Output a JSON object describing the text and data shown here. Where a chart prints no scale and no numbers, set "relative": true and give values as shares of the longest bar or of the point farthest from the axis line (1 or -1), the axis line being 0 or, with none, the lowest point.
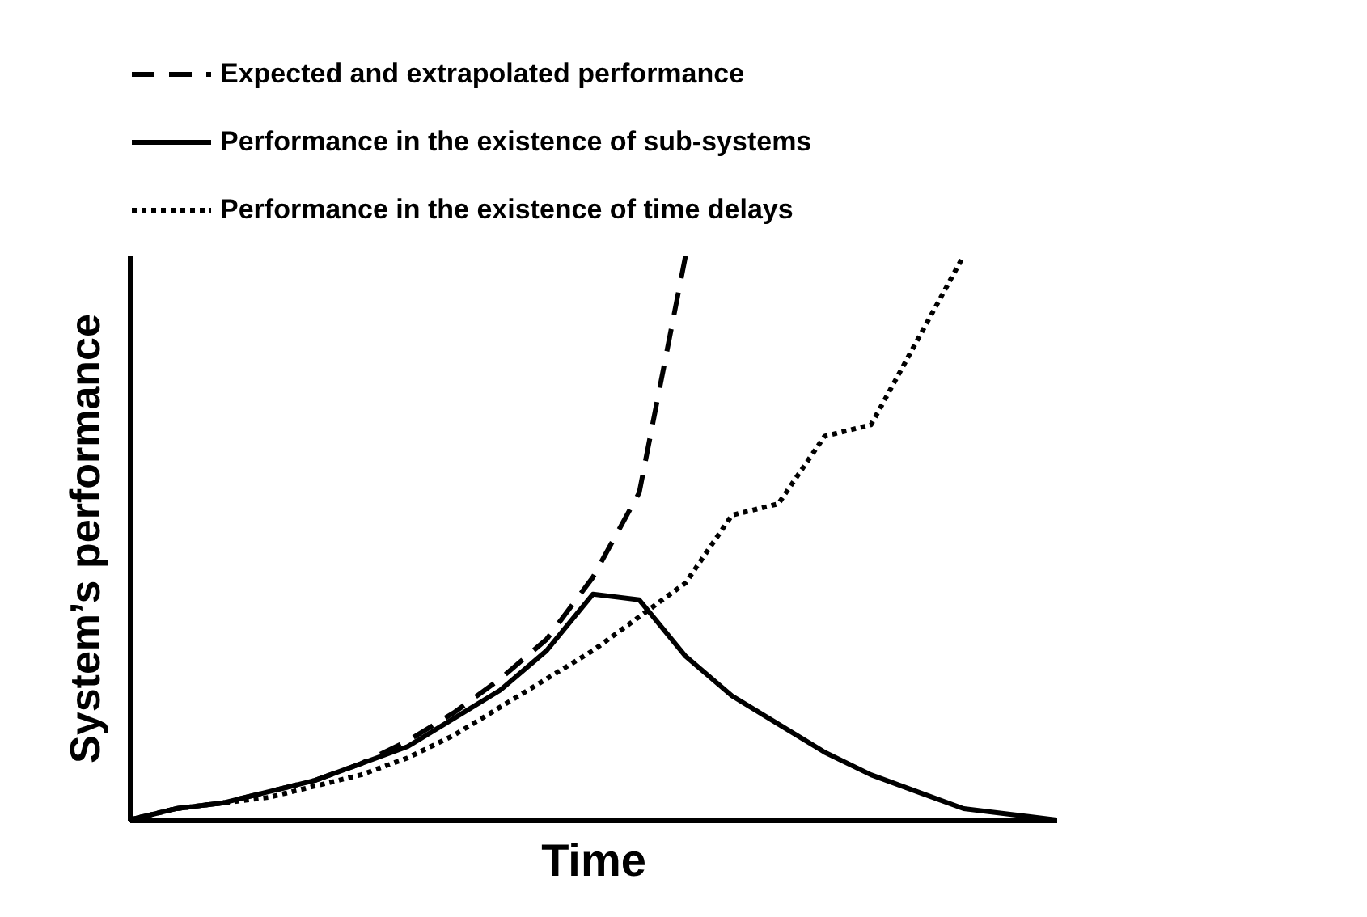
{
  "chart_data": {
    "type": "line",
    "relative": true,
    "xlabel": "Time",
    "ylabel": "System’s performance",
    "grid": false,
    "legend": "top",
    "marker": "none",
    "categories": [
      null,
      null,
      null,
      null,
      null,
      null,
      null,
      null,
      null,
      null,
      null,
      null,
      null,
      null,
      null,
      null,
      null,
      null,
      null,
      null,
      null
    ],
    "series": [
      {
        "name": "Expected and extrapolated  performance",
        "color": "#000000",
        "line_style": "dashed",
        "values": [
          0,
          0.02,
          0.03,
          0.05,
          0.07,
          0.1,
          0.14,
          0.19,
          0.25,
          0.32,
          0.43,
          0.58,
          1,
          null,
          null,
          null,
          null,
          null,
          null,
          null,
          null
        ]
      },
      {
        "name": "Performance in the existence of sub-systems",
        "color": "#000000",
        "line_style": "solid",
        "values": [
          0,
          0.02,
          0.03,
          0.05,
          0.07,
          0.1,
          0.13,
          0.18,
          0.23,
          0.3,
          0.4,
          0.39,
          0.29,
          0.22,
          0.17,
          0.12,
          0.08,
          0.05,
          0.02,
          0.01,
          0
        ]
      },
      {
        "name": "Performance in the existence of  time delays",
        "color": "#000000",
        "line_style": "dotted",
        "values": [
          0,
          0.02,
          0.03,
          0.04,
          0.06,
          0.08,
          0.11,
          0.15,
          0.2,
          0.25,
          0.3,
          0.36,
          0.42,
          0.54,
          0.56,
          0.68,
          0.7,
          0.85,
          1,
          null,
          null
        ]
      }
    ]
  }
}
